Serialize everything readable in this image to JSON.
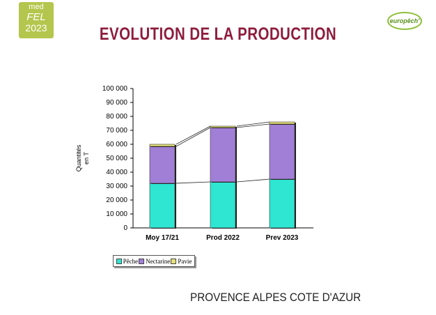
{
  "logo": {
    "line1": "med",
    "line2": "FEL",
    "line3": "2023",
    "color": "#b5c64e"
  },
  "brand": {
    "text": "europêch'"
  },
  "page_title": "EVOLUTION DE LA PRODUCTION",
  "region": "PROVENCE ALPES COTE D'AZUR",
  "chart_data": {
    "type": "bar",
    "stacked": true,
    "categories": [
      "Moy 17/21",
      "Prod 2022",
      "Prev 2023"
    ],
    "series": [
      {
        "name": "Pêche",
        "values": [
          32000,
          33000,
          35000
        ],
        "color": "#2ee6d2"
      },
      {
        "name": "Nectarine",
        "values": [
          26500,
          39000,
          39500
        ],
        "color": "#a27fd6"
      },
      {
        "name": "Pavie",
        "values": [
          1500,
          1000,
          1500
        ],
        "color": "#e6e07a"
      }
    ],
    "ylabel": "Quantités en T",
    "ylim": [
      0,
      100000
    ],
    "yticks": [
      0,
      10000,
      20000,
      30000,
      40000,
      50000,
      60000,
      70000,
      80000,
      90000,
      100000
    ],
    "ytick_labels": [
      "0",
      "10 000",
      "20 000",
      "30 000",
      "40 000",
      "50 000",
      "60 000",
      "70 000",
      "80 000",
      "90 000",
      "100 000"
    ],
    "grid": false,
    "legend_position": "bottom-left",
    "connector_lines": true
  }
}
